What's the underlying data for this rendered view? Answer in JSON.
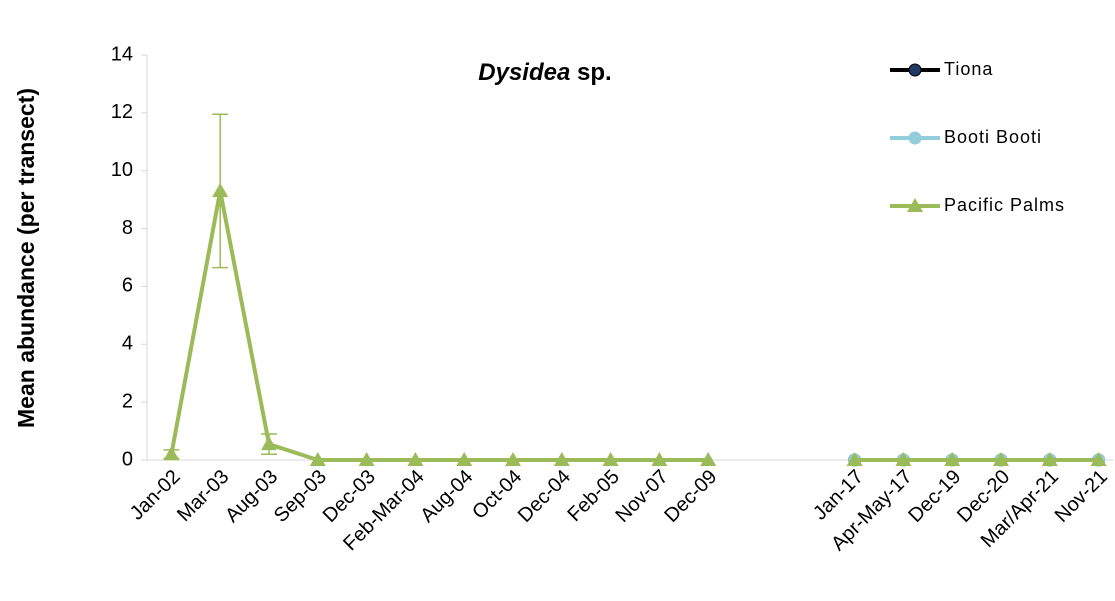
{
  "chart_data": {
    "type": "line",
    "title": [
      "Dysidea",
      "sp."
    ],
    "y_label": "Mean abundance (per transect)",
    "categories": [
      "Jan-02",
      "Mar-03",
      "Aug-03",
      "Sep-03",
      "Dec-03",
      "Feb-Mar-04",
      "Aug-04",
      "Oct-04",
      "Dec-04",
      "Feb-05",
      "Nov-07",
      "Dec-09",
      null,
      null,
      "Jan-17",
      "Apr-May-17",
      "Dec-19",
      "Dec-20",
      "Mar/Apr-21",
      "Nov-21"
    ],
    "series": [
      {
        "name": "Tiona",
        "color": "#1f3864",
        "line_color": "#000000",
        "marker": "circle",
        "values": [
          null,
          null,
          null,
          null,
          null,
          null,
          null,
          null,
          null,
          null,
          null,
          null,
          null,
          null,
          0,
          0,
          0,
          0,
          0,
          0
        ]
      },
      {
        "name": "Booti Booti",
        "color": "#92cddc",
        "line_color": "#92cddc",
        "marker": "circle",
        "values": [
          null,
          null,
          null,
          null,
          null,
          null,
          null,
          null,
          null,
          null,
          null,
          null,
          null,
          null,
          0,
          0,
          0,
          0,
          0,
          0
        ]
      },
      {
        "name": "Pacific Palms",
        "color": "#9bbb59",
        "line_color": "#9bbb59",
        "marker": "triangle",
        "values": [
          0.2,
          9.3,
          0.55,
          0,
          0,
          0,
          0,
          0,
          0,
          0,
          0,
          0,
          null,
          null,
          0,
          0,
          0,
          0,
          0,
          0
        ],
        "errors": [
          0.15,
          2.65,
          0.35,
          null,
          null,
          null,
          null,
          null,
          null,
          null,
          null,
          null,
          null,
          null,
          null,
          null,
          null,
          null,
          null,
          null
        ]
      }
    ],
    "ylim": [
      0,
      14
    ],
    "yticks": [
      0,
      2,
      4,
      6,
      8,
      10,
      12,
      14
    ],
    "legend": "top-right"
  }
}
